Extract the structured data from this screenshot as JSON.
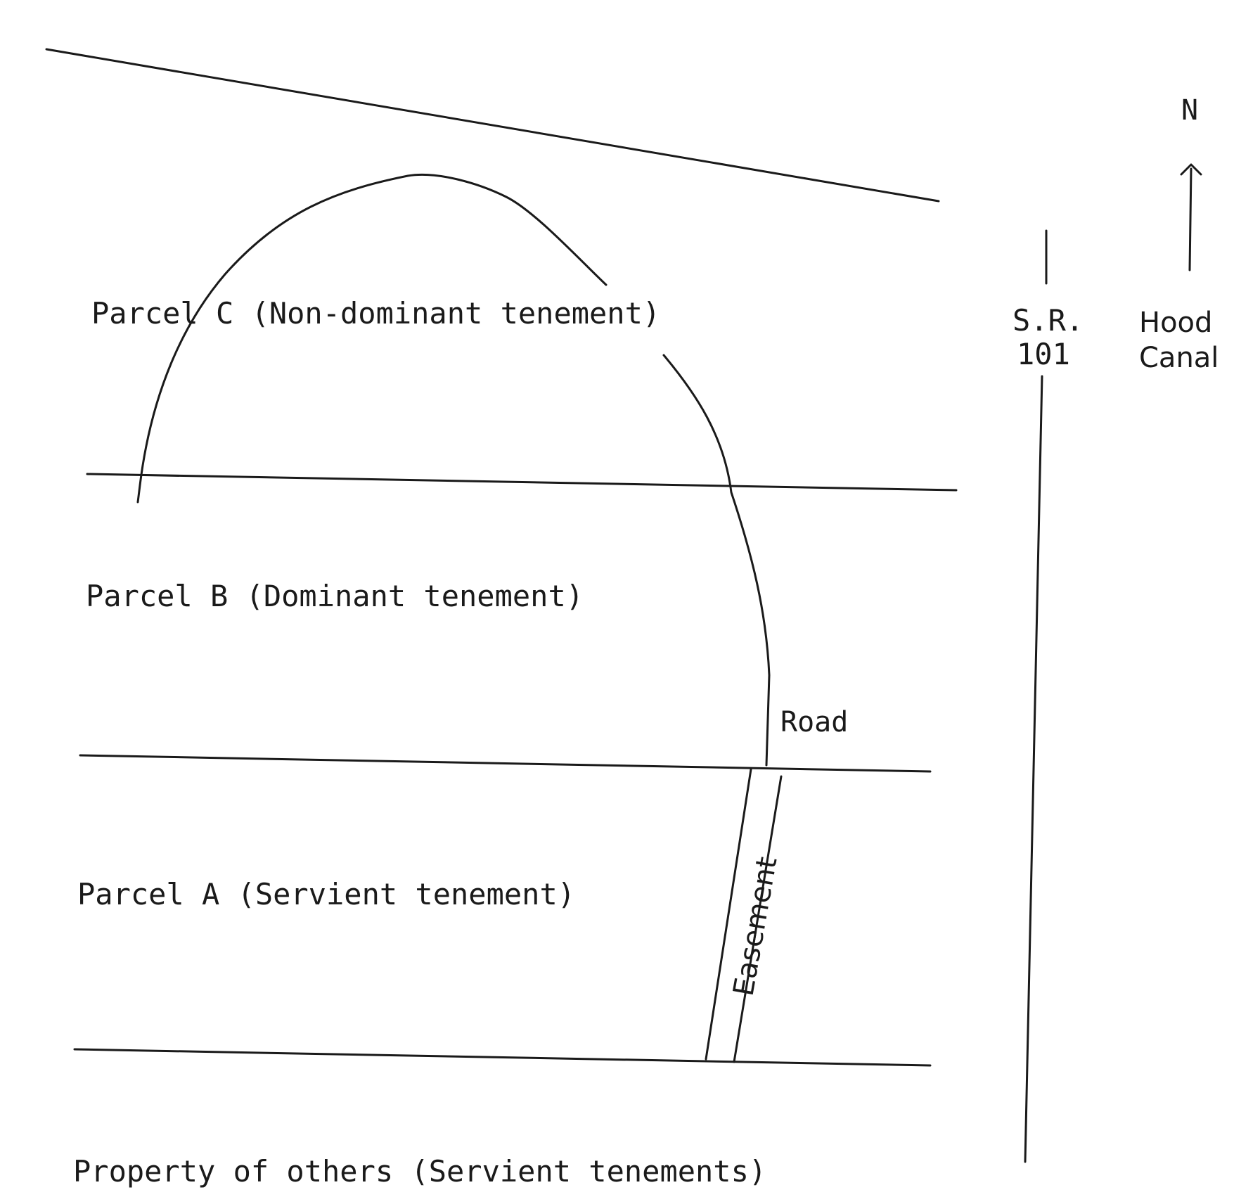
{
  "labels": {
    "parcel_c": "Parcel C (Non-dominant tenement)",
    "parcel_b": "Parcel B (Dominant tenement)",
    "parcel_a": "Parcel A (Servient tenement)",
    "property_others": "Property of others (Servient tenements)",
    "road": "Road",
    "easement": "Easement",
    "highway_line1": "S.R.",
    "highway_line2": "101",
    "canal_line1": "Hood",
    "canal_line2": "Canal",
    "north": "N"
  }
}
